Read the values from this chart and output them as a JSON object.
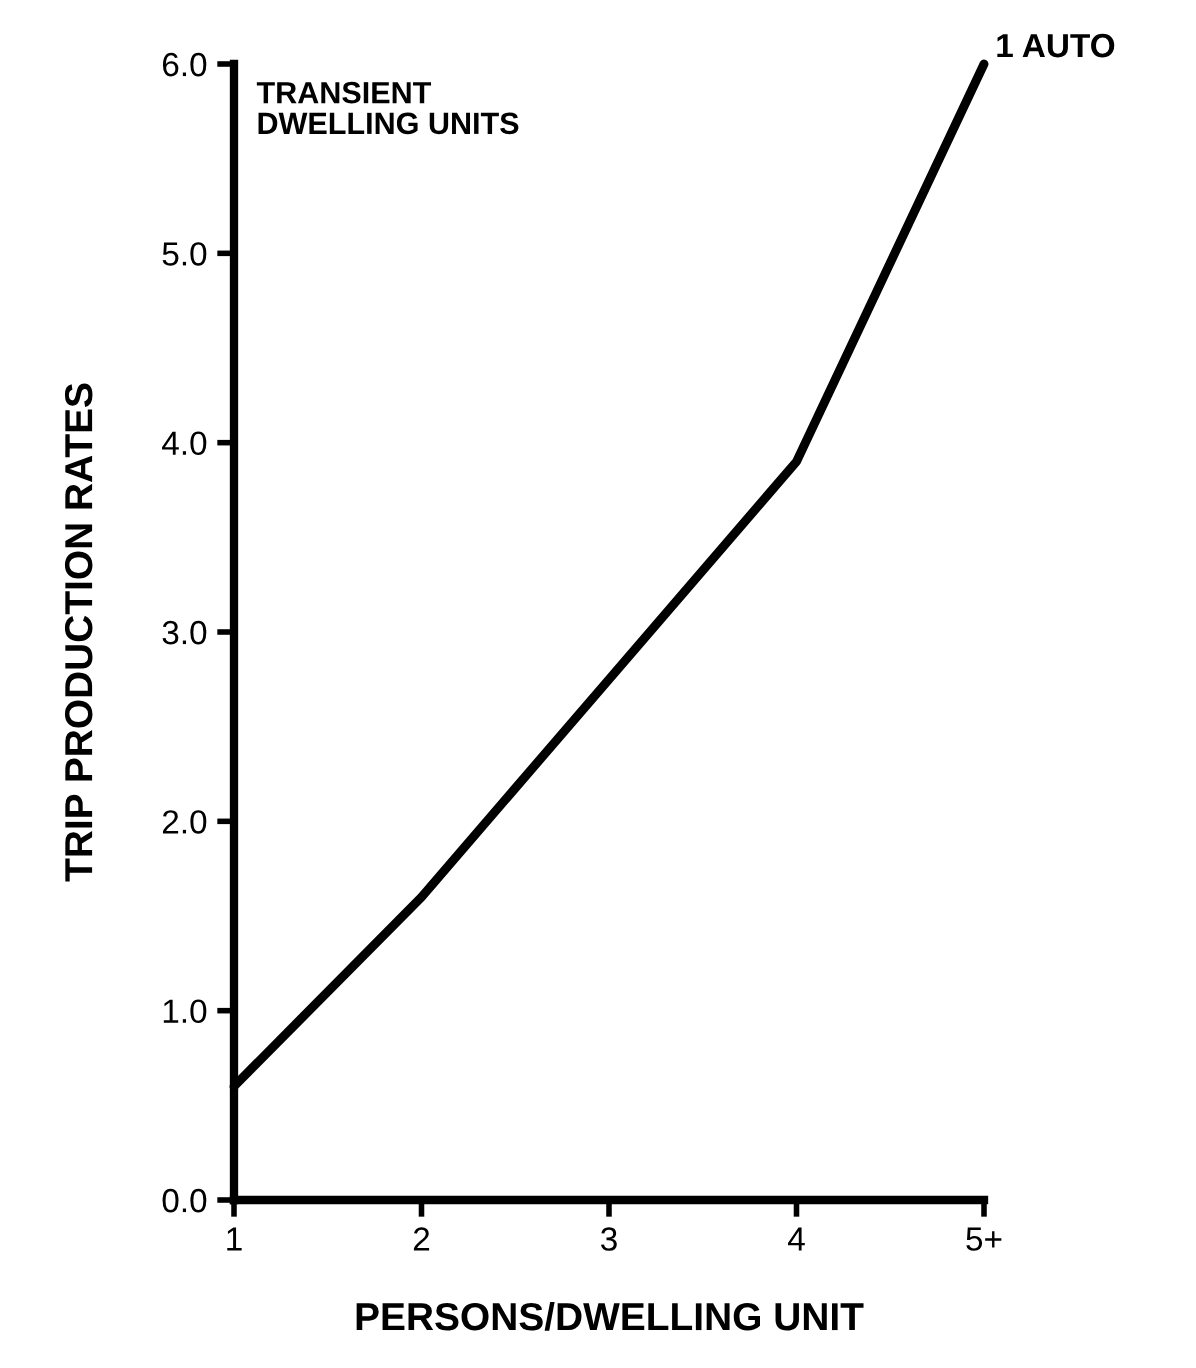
{
  "chart_data": {
    "type": "line",
    "xlabel": "PERSONS/DWELLING UNIT",
    "ylabel": "TRIP PRODUCTION RATES",
    "annotations": [
      "TRANSIENT\nDWELLING UNITS"
    ],
    "categories": [
      "1",
      "2",
      "3",
      "4",
      "5+"
    ],
    "series": [
      {
        "name": "1 AUTO",
        "color": "#000000",
        "values": [
          0.6,
          1.6,
          2.75,
          3.9,
          6.0
        ]
      }
    ],
    "ylim": [
      0,
      6
    ],
    "yticks": [
      {
        "value": 0,
        "label": "0.0"
      },
      {
        "value": 1,
        "label": "1.0"
      },
      {
        "value": 2,
        "label": "2.0"
      },
      {
        "value": 3,
        "label": "3.0"
      },
      {
        "value": 4,
        "label": "4.0"
      },
      {
        "value": 5,
        "label": "5.0"
      },
      {
        "value": 6,
        "label": "6.0"
      }
    ],
    "grid": false,
    "legend": false,
    "marker": "none",
    "line_style": "solid"
  }
}
